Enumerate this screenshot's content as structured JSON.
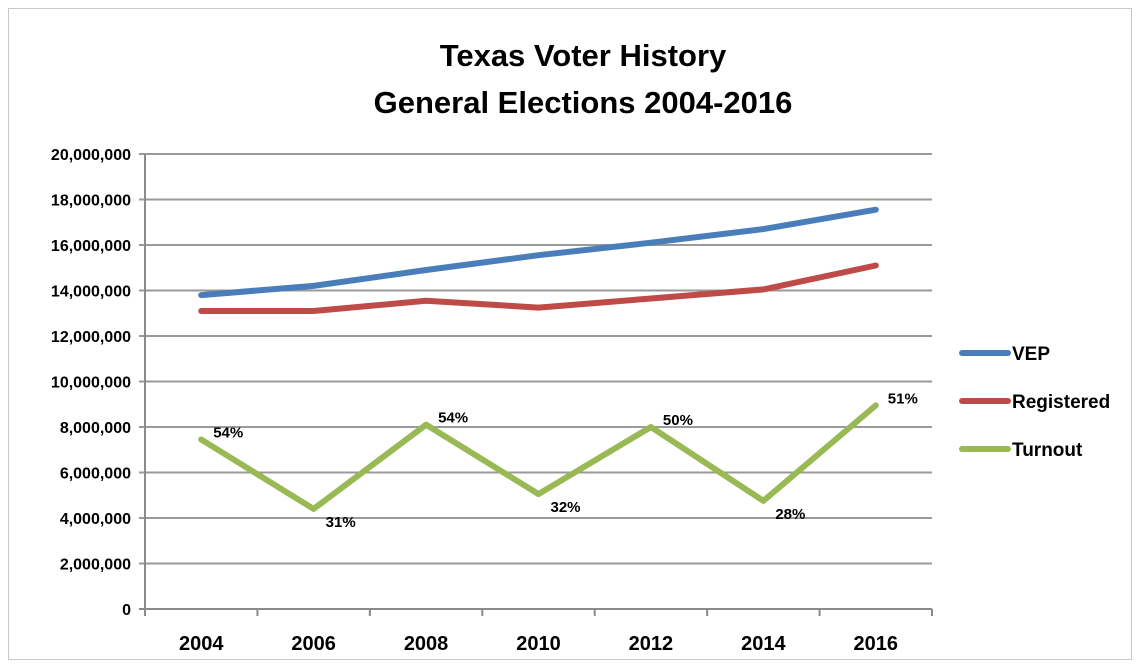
{
  "chart_data": {
    "type": "line",
    "title": [
      "Texas Voter History",
      "General Elections 2004-2016"
    ],
    "xlabel": "",
    "ylabel": "",
    "categories": [
      "2004",
      "2006",
      "2008",
      "2010",
      "2012",
      "2014",
      "2016"
    ],
    "ylim": [
      0,
      20000000
    ],
    "yticks": [
      "0",
      "2,000,000",
      "4,000,000",
      "6,000,000",
      "8,000,000",
      "10,000,000",
      "12,000,000",
      "14,000,000",
      "16,000,000",
      "18,000,000",
      "20,000,000"
    ],
    "grid": true,
    "legend_position": "right",
    "series": [
      {
        "name": "VEP",
        "color": "#4a7ebb",
        "values": [
          13800000,
          14200000,
          14900000,
          15550000,
          16100000,
          16700000,
          17550000
        ]
      },
      {
        "name": "Registered",
        "color": "#be4b48",
        "values": [
          13100000,
          13100000,
          13550000,
          13250000,
          13650000,
          14050000,
          15100000
        ]
      },
      {
        "name": "Turnout",
        "color": "#98b954",
        "values": [
          7450000,
          4400000,
          8100000,
          5050000,
          8000000,
          4750000,
          8950000
        ],
        "data_labels": [
          "54%",
          "31%",
          "54%",
          "32%",
          "50%",
          "28%",
          "51%"
        ]
      }
    ]
  }
}
